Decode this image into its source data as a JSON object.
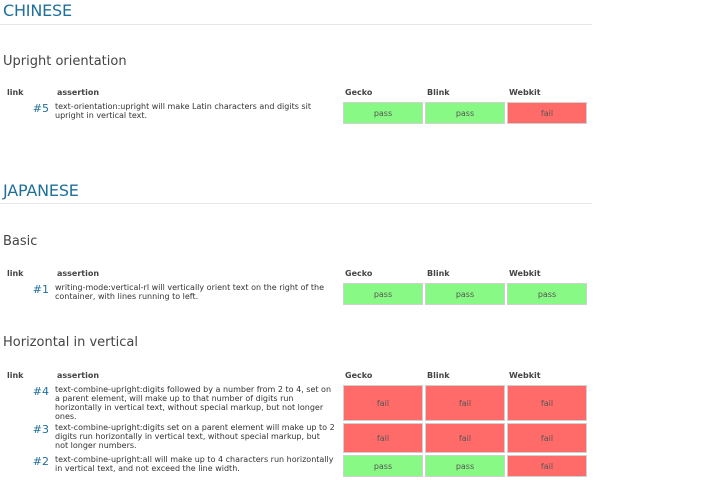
{
  "columns": {
    "link": "link",
    "assertion": "assertion",
    "gecko": "Gecko",
    "blink": "Blink",
    "webkit": "Webkit"
  },
  "sections": [
    {
      "title": "CHINESE",
      "subsections": [
        {
          "title": "Upright orientation",
          "rows": [
            {
              "link": "#5",
              "assertion": "text-orientation:upright will make Latin characters and digits sit upright in vertical text.",
              "gecko": "pass",
              "blink": "pass",
              "webkit": "fail"
            }
          ]
        }
      ]
    },
    {
      "title": "JAPANESE",
      "subsections": [
        {
          "title": "Basic",
          "rows": [
            {
              "link": "#1",
              "assertion": "writing-mode:vertical-rl will vertically orient text on the right of the container, with lines running to left.",
              "gecko": "pass",
              "blink": "pass",
              "webkit": "pass"
            }
          ]
        },
        {
          "title": "Horizontal in vertical",
          "rows": [
            {
              "link": "#4",
              "assertion": "text-combine-upright:digits followed by a number from 2 to 4, set on a parent element, will make up to that number of digits run horizontally in vertical text, without special markup, but not longer ones.",
              "gecko": "fail",
              "blink": "fail",
              "webkit": "fail"
            },
            {
              "link": "#3",
              "assertion": "text-combine-upright:digits set on a parent element will make up to 2 digits run horizontally in vertical text, without special markup, but not longer numbers.",
              "gecko": "fail",
              "blink": "fail",
              "webkit": "fail"
            },
            {
              "link": "#2",
              "assertion": "text-combine-upright:all will make up to 4 characters run horizontally in vertical text, and not exceed the line width.",
              "gecko": "pass",
              "blink": "pass",
              "webkit": "fail"
            }
          ]
        }
      ]
    }
  ],
  "colors": {
    "pass": "#88f984",
    "fail": "#ff6b68",
    "heading": "#1f6f9b"
  }
}
